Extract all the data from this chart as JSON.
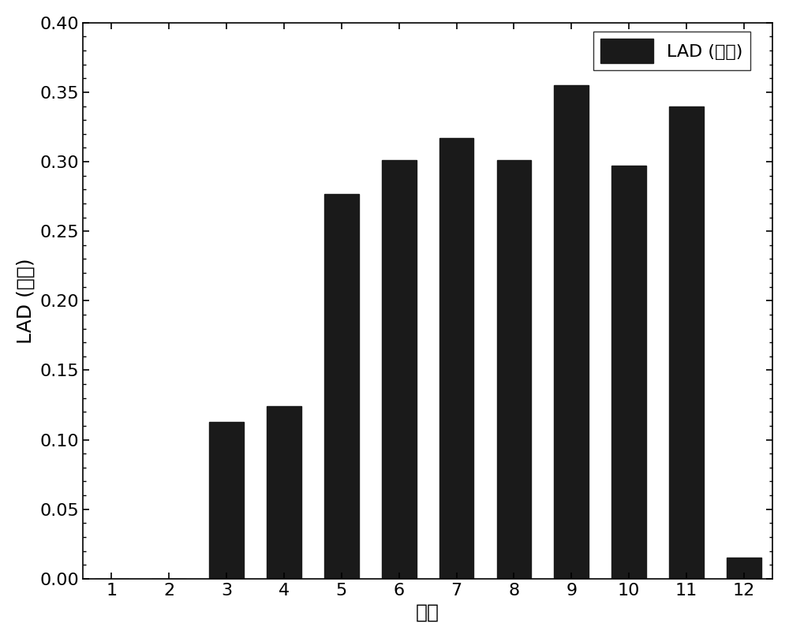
{
  "months": [
    1,
    2,
    3,
    4,
    5,
    6,
    7,
    8,
    9,
    10,
    11,
    12
  ],
  "values": [
    0.0,
    0.0,
    0.113,
    0.124,
    0.277,
    0.301,
    0.317,
    0.301,
    0.355,
    0.297,
    0.34,
    0.015
  ],
  "bar_color": "#1a1a1a",
  "xlabel": "月份",
  "ylabel": "LAD (果杨)",
  "legend_label": "LAD (果杨)",
  "ylim": [
    0.0,
    0.4
  ],
  "yticks": [
    0.0,
    0.05,
    0.1,
    0.15,
    0.2,
    0.25,
    0.3,
    0.35,
    0.4
  ],
  "xticks": [
    1,
    2,
    3,
    4,
    5,
    6,
    7,
    8,
    9,
    10,
    11,
    12
  ],
  "bar_width": 0.6,
  "background_color": "#ffffff",
  "axis_fontsize": 18,
  "tick_fontsize": 16,
  "legend_fontsize": 16
}
